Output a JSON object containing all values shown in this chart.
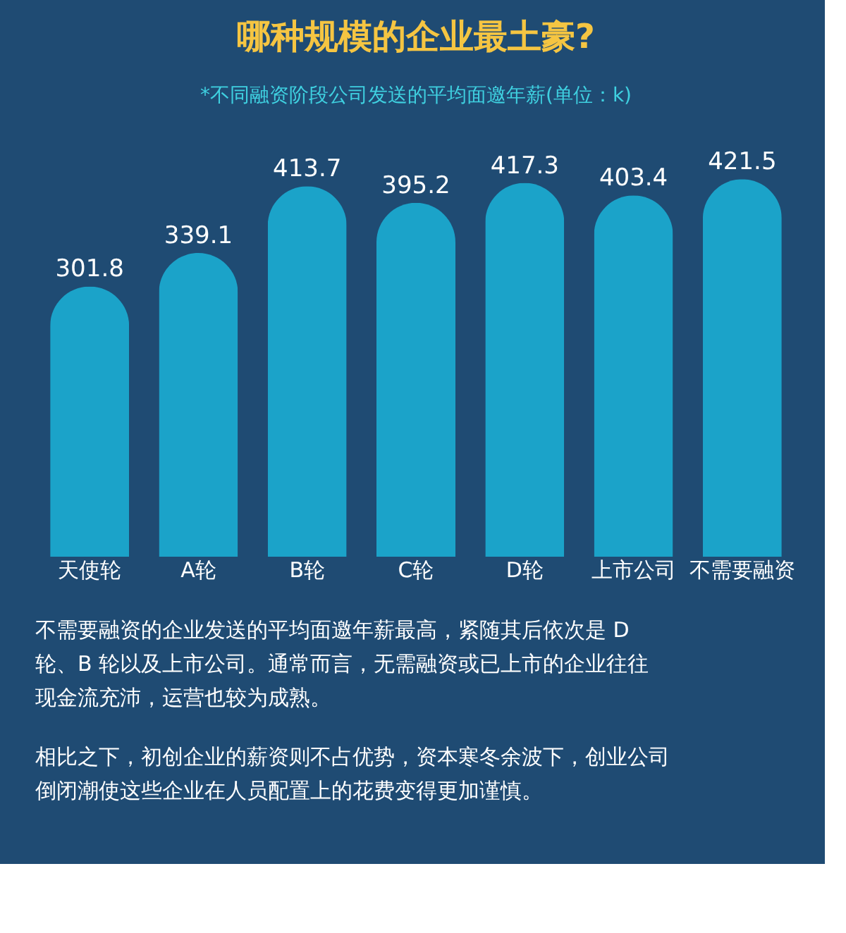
{
  "chart_data": {
    "type": "bar",
    "title": "哪种规模的企业最土豪?",
    "subtitle": "*不同融资阶段公司发送的平均面邀年薪(单位：k)",
    "categories": [
      "天使轮",
      "A轮",
      "B轮",
      "C轮",
      "D轮",
      "上市公司",
      "不需要融资"
    ],
    "values": [
      301.8,
      339.1,
      413.7,
      395.2,
      417.3,
      403.4,
      421.5
    ],
    "color": "#1ba3c9",
    "data_labels": true,
    "grid": false,
    "annotations": [
      "不需要融资的企业发送的平均面邀年薪最高，紧随其后依次是 D 轮、B 轮以及上市公司。通常而言，无需融资或已上市的企业往往现金流充沛，运营也较为成熟。",
      "相比之下，初创企业的薪资则不占优势，资本寒冬余波下，创业公司倒闭潮使这些企业在人员配置上的花费变得更加谨慎。"
    ]
  }
}
